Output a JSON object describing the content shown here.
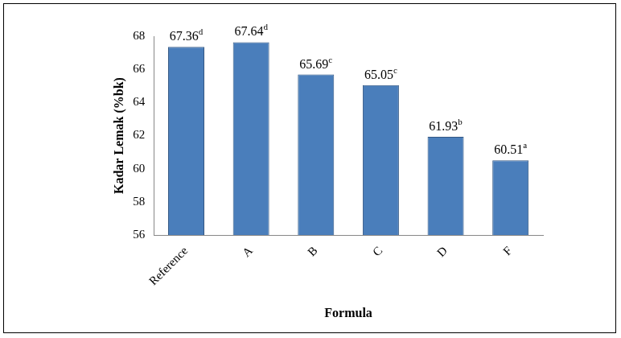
{
  "chart_data": {
    "type": "bar",
    "x_label": "Formula",
    "y_label": "Kadar Lemak (%bk)",
    "categories": [
      "Reference",
      "A",
      "B",
      "C",
      "D",
      "F"
    ],
    "values": [
      67.36,
      67.64,
      65.69,
      65.05,
      61.93,
      60.51
    ],
    "annotations": [
      "d",
      "d",
      "c",
      "c",
      "b",
      "a"
    ],
    "color": "#4a7ebb",
    "ylim": [
      56,
      68
    ],
    "yticks": [
      56,
      58,
      60,
      62,
      64,
      66,
      68
    ],
    "grid": false,
    "data_labels": true
  }
}
